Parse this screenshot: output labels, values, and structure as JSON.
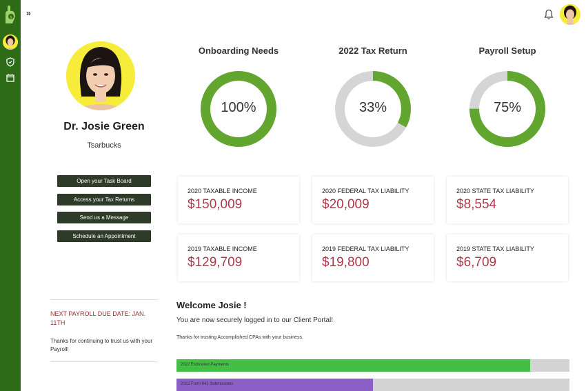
{
  "topbar": {
    "expand_label": "»"
  },
  "profile": {
    "name": "Dr. Josie Green",
    "company": "Tsarbucks"
  },
  "actions": [
    {
      "label": "Open your Task Board"
    },
    {
      "label": "Access your Tax Returns"
    },
    {
      "label": "Send us a Message"
    },
    {
      "label": "Schedule an Appointment"
    }
  ],
  "payroll": {
    "due": "NEXT PAYROLL DUE DATE: JAN. 11TH",
    "thanks": "Thanks for continuing to trust us with your Payroll!"
  },
  "donuts": [
    {
      "title": "Onboarding Needs",
      "label": "100%",
      "value": 1.0
    },
    {
      "title": "2022 Tax Return",
      "label": "33%",
      "value": 0.33
    },
    {
      "title": "Payroll Setup",
      "label": "75%",
      "value": 0.75
    }
  ],
  "cards": [
    {
      "label": "2020 TAXABLE INCOME",
      "value": "$150,009"
    },
    {
      "label": "2020 FEDERAL TAX LIABILITY",
      "value": "$20,009"
    },
    {
      "label": "2020 STATE TAX LIABILITY",
      "value": "$8,554"
    },
    {
      "label": "2019 TAXABLE INCOME",
      "value": "$129,709"
    },
    {
      "label": "2019 FEDERAL TAX LIABILITY",
      "value": "$19,800"
    },
    {
      "label": "2019 STATE TAX LIABILITY",
      "value": "$6,709"
    }
  ],
  "welcome": {
    "title": "Welcome Josie !",
    "line": "You are now securely logged in to our Client Portal!",
    "thanks": "Thanks for trusting Accomplished CPAs with your business."
  },
  "progress": [
    {
      "label": "2022 Estimated Payments",
      "value": 0.9,
      "color": "#43bf45"
    },
    {
      "label": "2022 Form 941 Submissions",
      "value": 0.5,
      "color": "#8c5fc7"
    }
  ],
  "colors": {
    "brand_green": "#2d6b16",
    "donut_green": "#62a52f",
    "donut_track": "#d5d5d5",
    "value_red": "#b0394a",
    "button_dark": "#2e3b28"
  },
  "icons": [
    "money-hand-icon",
    "bell-icon",
    "shield-icon",
    "calendar-icon"
  ]
}
